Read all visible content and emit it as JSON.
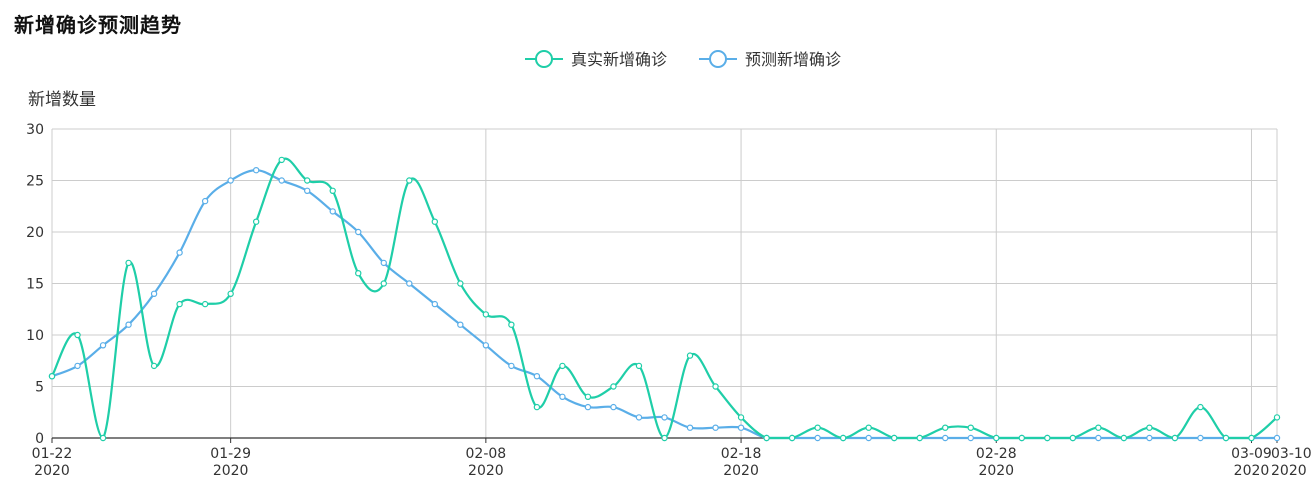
{
  "colors": {
    "actual": "#1fcea8",
    "predicted": "#5aaee8",
    "grid": "#cccccc",
    "axis": "#333333",
    "text": "#333333"
  },
  "chart_data": {
    "type": "line",
    "title": "新增确诊预测趋势",
    "ylabel": "新增数量",
    "xlabel": "",
    "ylim": [
      0,
      30
    ],
    "yticks": [
      0,
      5,
      10,
      15,
      20,
      25,
      30
    ],
    "legend_position": "top-center",
    "grid": true,
    "x_start": "2020-01-22",
    "x_end": "2020-03-10",
    "x_ticks": [
      {
        "month_day": "01-22",
        "year": "2020"
      },
      {
        "month_day": "01-29",
        "year": "2020"
      },
      {
        "month_day": "02-08",
        "year": "2020"
      },
      {
        "month_day": "02-18",
        "year": "2020"
      },
      {
        "month_day": "02-28",
        "year": "2020"
      },
      {
        "month_day": "03-09",
        "year": "2020"
      },
      {
        "month_day": "03-10",
        "year": "2020"
      }
    ],
    "series": [
      {
        "name": "真实新增确诊",
        "color": "#1fcea8",
        "values": [
          6,
          10,
          0,
          17,
          7,
          13,
          13,
          14,
          21,
          27,
          25,
          24,
          16,
          15,
          25,
          21,
          15,
          12,
          11,
          3,
          7,
          4,
          5,
          7,
          0,
          8,
          5,
          2,
          0,
          0,
          1,
          0,
          1,
          0,
          0,
          1,
          1,
          0,
          0,
          0,
          0,
          1,
          0,
          1,
          0,
          3,
          0,
          0,
          2
        ]
      },
      {
        "name": "预测新增确诊",
        "color": "#5aaee8",
        "values": [
          6,
          7,
          9,
          11,
          14,
          18,
          23,
          25,
          26,
          25,
          24,
          22,
          20,
          17,
          15,
          13,
          11,
          9,
          7,
          6,
          4,
          3,
          3,
          2,
          2,
          1,
          1,
          1,
          0,
          0,
          0,
          0,
          0,
          0,
          0,
          0,
          0,
          0,
          0,
          0,
          0,
          0,
          0,
          0,
          0,
          0,
          0,
          0,
          0
        ]
      }
    ]
  }
}
